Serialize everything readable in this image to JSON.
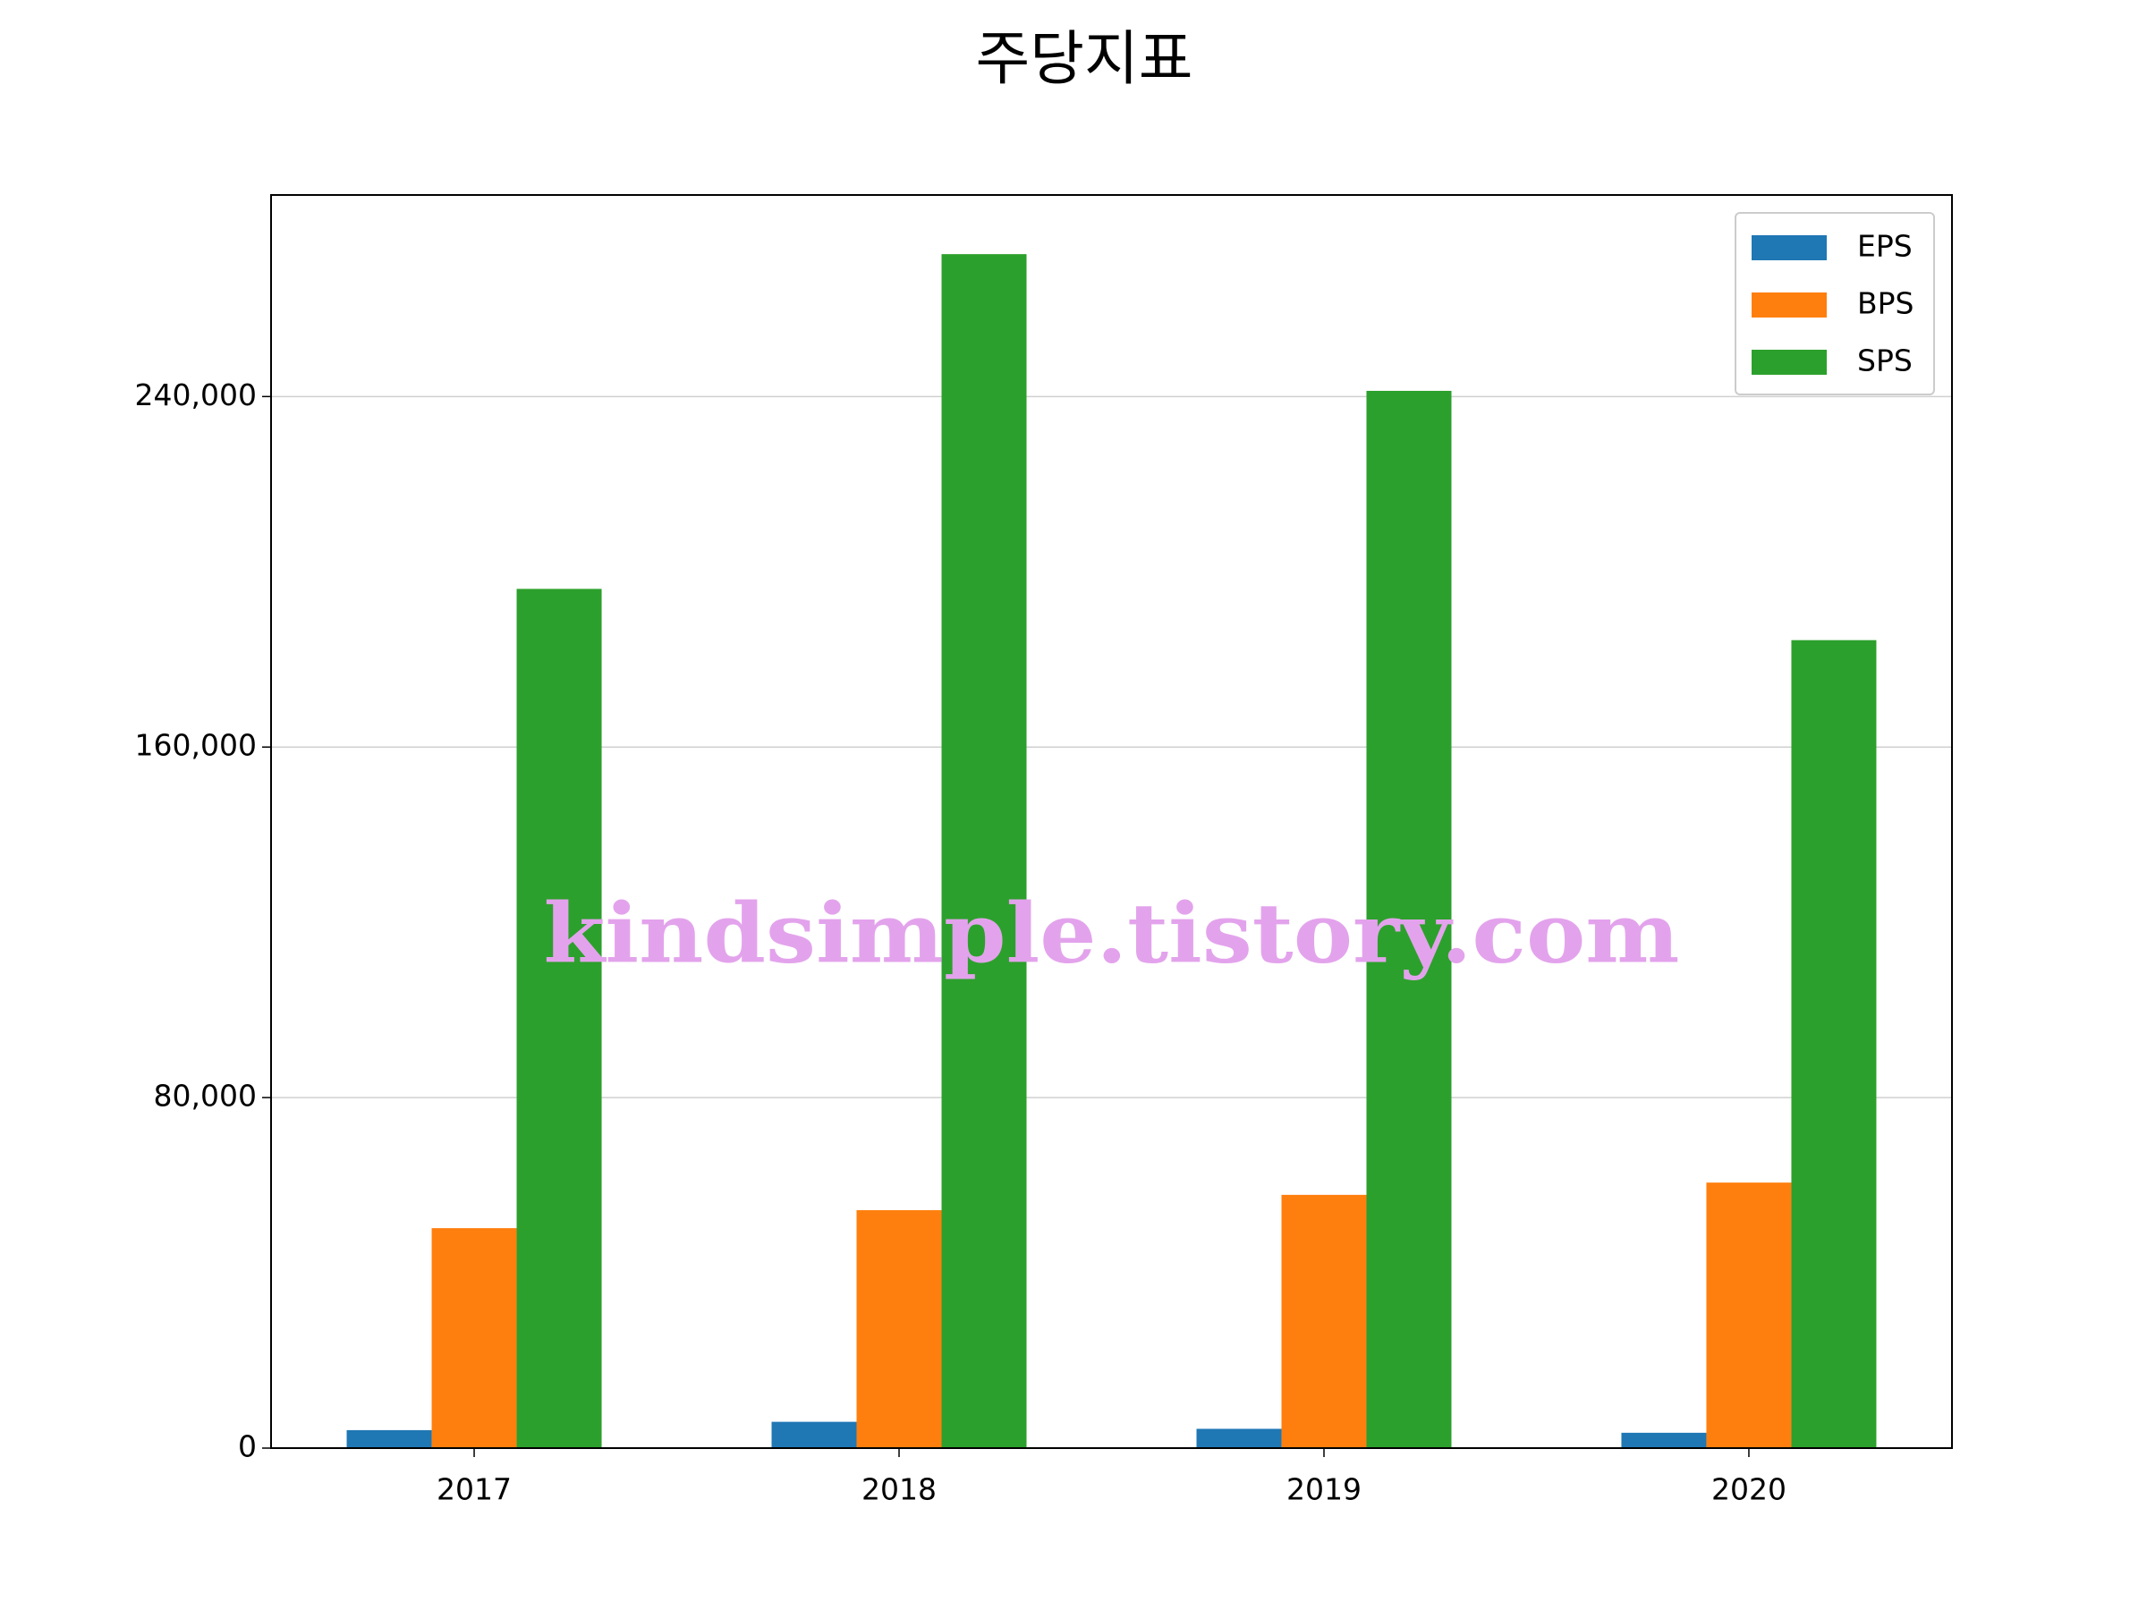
{
  "chart_data": {
    "type": "bar",
    "title": "주당지표",
    "categories": [
      "2017",
      "2018",
      "2019",
      "2020"
    ],
    "series": [
      {
        "name": "EPS",
        "color": "#1f77b4",
        "values": [
          4100,
          6000,
          4400,
          3500
        ]
      },
      {
        "name": "BPS",
        "color": "#ff7f0e",
        "values": [
          50200,
          54300,
          57800,
          60600
        ]
      },
      {
        "name": "SPS",
        "color": "#2ca02c",
        "values": [
          196100,
          272500,
          241300,
          184400
        ]
      }
    ],
    "ylim": [
      0,
      286000
    ],
    "yticks": [
      0,
      {
        "value": 80000,
        "label": "80,000"
      },
      {
        "value": 160000,
        "label": "160,000"
      },
      {
        "value": 240000,
        "label": "240,000"
      }
    ],
    "grid": true,
    "legend": "upper right",
    "annotation": "kindsimple.tistory.com"
  }
}
